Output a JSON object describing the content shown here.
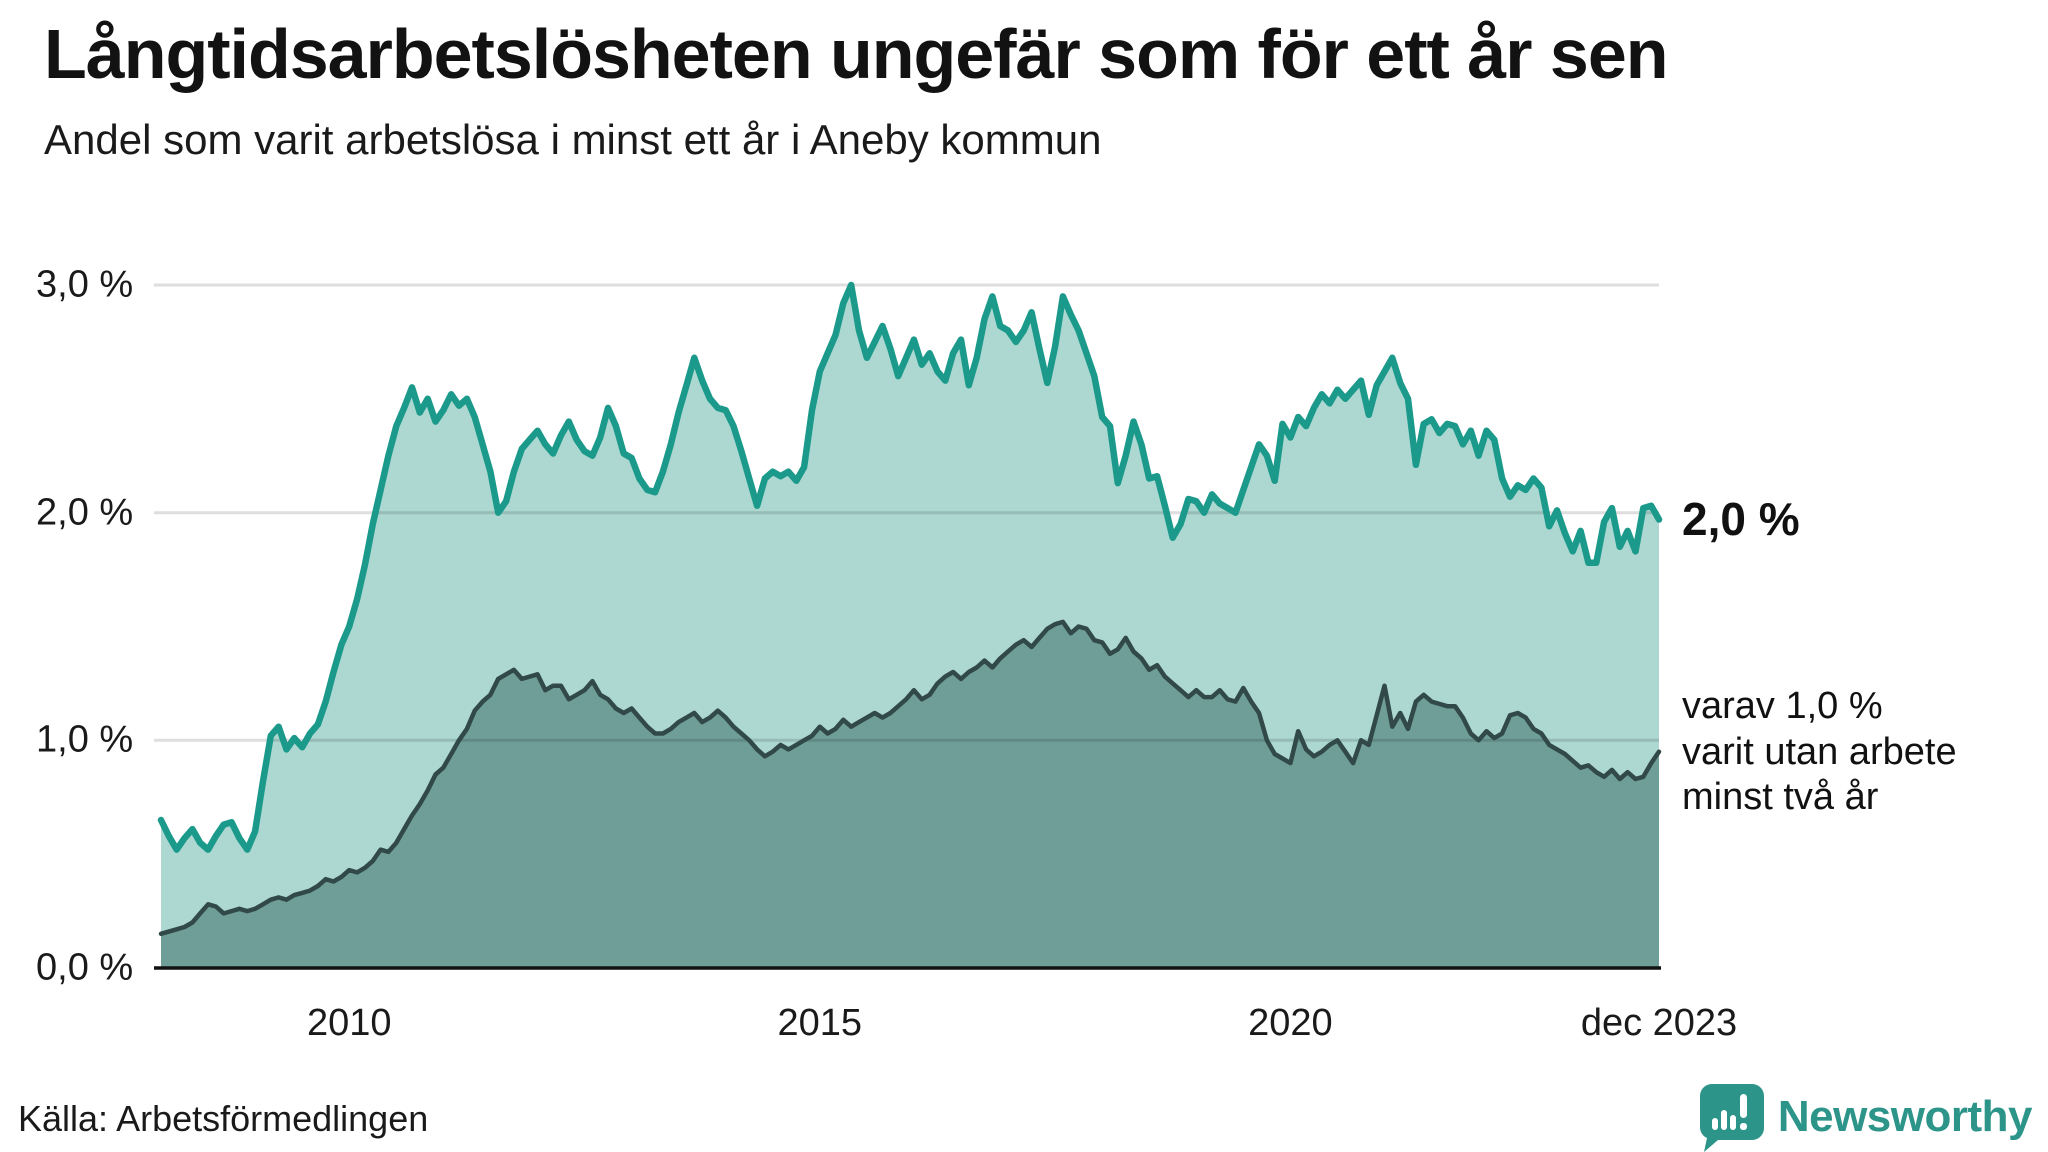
{
  "header": {
    "title": "Långtidsarbetslösheten ungefär som för ett år sen",
    "subtitle": "Andel som varit arbetslösa i minst ett år i Aneby kommun"
  },
  "chart_data": {
    "type": "area",
    "title": "Långtidsarbetslösheten ungefär som för ett år sen",
    "subtitle": "Andel som varit arbetslösa i minst ett år i Aneby kommun",
    "unit": "%",
    "frequency": "monthly",
    "x_start": "2008-01",
    "x_end": "2023-12",
    "ylim": [
      0,
      3.2
    ],
    "grid": "horizontal",
    "colors": {
      "total_line": "#1b998b",
      "total_fill": "#acd8d1",
      "two_year_line": "#32494a",
      "two_year_fill": "#6f9e99",
      "gridline": "rgba(0,0,0,0.13)",
      "axis": "#111111"
    },
    "y_axis": {
      "ticks": [
        {
          "label": "3,0 %",
          "value": 3.0
        },
        {
          "label": "2,0 %",
          "value": 2.0
        },
        {
          "label": "1,0 %",
          "value": 1.0
        },
        {
          "label": "0,0 %",
          "value": 0.0
        }
      ]
    },
    "x_axis": {
      "ticks": [
        {
          "label": "2010",
          "month_index": 24
        },
        {
          "label": "2015",
          "month_index": 84
        },
        {
          "label": "2020",
          "month_index": 144
        },
        {
          "label": "dec 2023",
          "month_index": 191
        }
      ]
    },
    "series": [
      {
        "name": "Andel arbetslösa minst ett år",
        "values": [
          0.65,
          0.58,
          0.52,
          0.57,
          0.61,
          0.55,
          0.52,
          0.58,
          0.63,
          0.64,
          0.57,
          0.52,
          0.6,
          0.82,
          1.02,
          1.06,
          0.96,
          1.01,
          0.97,
          1.03,
          1.07,
          1.17,
          1.3,
          1.42,
          1.5,
          1.62,
          1.77,
          1.95,
          2.1,
          2.25,
          2.38,
          2.46,
          2.55,
          2.44,
          2.5,
          2.4,
          2.45,
          2.52,
          2.47,
          2.5,
          2.42,
          2.3,
          2.18,
          2.0,
          2.05,
          2.18,
          2.28,
          2.32,
          2.36,
          2.3,
          2.26,
          2.34,
          2.4,
          2.32,
          2.27,
          2.25,
          2.33,
          2.46,
          2.38,
          2.26,
          2.24,
          2.15,
          2.1,
          2.09,
          2.18,
          2.3,
          2.44,
          2.56,
          2.68,
          2.58,
          2.5,
          2.46,
          2.45,
          2.38,
          2.27,
          2.15,
          2.03,
          2.15,
          2.18,
          2.16,
          2.18,
          2.14,
          2.2,
          2.45,
          2.62,
          2.7,
          2.78,
          2.92,
          3.0,
          2.8,
          2.68,
          2.75,
          2.82,
          2.72,
          2.6,
          2.68,
          2.76,
          2.65,
          2.7,
          2.62,
          2.58,
          2.7,
          2.76,
          2.56,
          2.68,
          2.85,
          2.95,
          2.82,
          2.8,
          2.75,
          2.8,
          2.88,
          2.72,
          2.57,
          2.73,
          2.95,
          2.87,
          2.8,
          2.7,
          2.6,
          2.42,
          2.38,
          2.13,
          2.25,
          2.4,
          2.3,
          2.15,
          2.16,
          2.03,
          1.89,
          1.95,
          2.06,
          2.05,
          2.0,
          2.08,
          2.04,
          2.02,
          2.0,
          2.1,
          2.2,
          2.3,
          2.25,
          2.14,
          2.39,
          2.33,
          2.42,
          2.38,
          2.46,
          2.52,
          2.48,
          2.54,
          2.5,
          2.54,
          2.58,
          2.43,
          2.56,
          2.62,
          2.68,
          2.57,
          2.5,
          2.21,
          2.39,
          2.41,
          2.35,
          2.39,
          2.38,
          2.3,
          2.36,
          2.25,
          2.36,
          2.32,
          2.15,
          2.07,
          2.12,
          2.1,
          2.15,
          2.11,
          1.94,
          2.01,
          1.91,
          1.83,
          1.92,
          1.78,
          1.78,
          1.96,
          2.02,
          1.85,
          1.92,
          1.83,
          2.02,
          2.03,
          1.97
        ]
      },
      {
        "name": "varav utan arbete minst två år",
        "values": [
          0.15,
          0.16,
          0.17,
          0.18,
          0.2,
          0.24,
          0.28,
          0.27,
          0.24,
          0.25,
          0.26,
          0.25,
          0.26,
          0.28,
          0.3,
          0.31,
          0.3,
          0.32,
          0.33,
          0.34,
          0.36,
          0.39,
          0.38,
          0.4,
          0.43,
          0.42,
          0.44,
          0.47,
          0.52,
          0.51,
          0.55,
          0.61,
          0.67,
          0.72,
          0.78,
          0.85,
          0.88,
          0.94,
          1.0,
          1.05,
          1.13,
          1.17,
          1.2,
          1.27,
          1.29,
          1.31,
          1.27,
          1.28,
          1.29,
          1.22,
          1.24,
          1.24,
          1.18,
          1.2,
          1.22,
          1.26,
          1.2,
          1.18,
          1.14,
          1.12,
          1.14,
          1.1,
          1.06,
          1.03,
          1.03,
          1.05,
          1.08,
          1.1,
          1.12,
          1.08,
          1.1,
          1.13,
          1.1,
          1.06,
          1.03,
          1.0,
          0.96,
          0.93,
          0.95,
          0.98,
          0.96,
          0.98,
          1.0,
          1.02,
          1.06,
          1.03,
          1.05,
          1.09,
          1.06,
          1.08,
          1.1,
          1.12,
          1.1,
          1.12,
          1.15,
          1.18,
          1.22,
          1.18,
          1.2,
          1.25,
          1.28,
          1.3,
          1.27,
          1.3,
          1.32,
          1.35,
          1.32,
          1.36,
          1.39,
          1.42,
          1.44,
          1.41,
          1.45,
          1.49,
          1.51,
          1.52,
          1.47,
          1.5,
          1.49,
          1.44,
          1.43,
          1.38,
          1.4,
          1.45,
          1.39,
          1.36,
          1.31,
          1.33,
          1.28,
          1.25,
          1.22,
          1.19,
          1.22,
          1.19,
          1.19,
          1.22,
          1.18,
          1.17,
          1.23,
          1.17,
          1.12,
          1.0,
          0.94,
          0.92,
          0.9,
          1.04,
          0.96,
          0.93,
          0.95,
          0.98,
          1.0,
          0.95,
          0.9,
          1.0,
          0.98,
          1.11,
          1.24,
          1.06,
          1.12,
          1.05,
          1.17,
          1.2,
          1.17,
          1.16,
          1.15,
          1.15,
          1.1,
          1.03,
          1.0,
          1.04,
          1.01,
          1.03,
          1.11,
          1.12,
          1.1,
          1.05,
          1.03,
          0.98,
          0.96,
          0.94,
          0.91,
          0.88,
          0.89,
          0.86,
          0.84,
          0.87,
          0.83,
          0.86,
          0.83,
          0.84,
          0.9,
          0.95
        ]
      }
    ],
    "end_labels": {
      "total": "2,0 %",
      "two_year_line1": "varav 1,0 %",
      "two_year_line2": "varit utan arbete",
      "two_year_line3": "minst två år"
    }
  },
  "footer": {
    "source": "Källa: Arbetsförmedlingen",
    "brand": "Newsworthy"
  }
}
